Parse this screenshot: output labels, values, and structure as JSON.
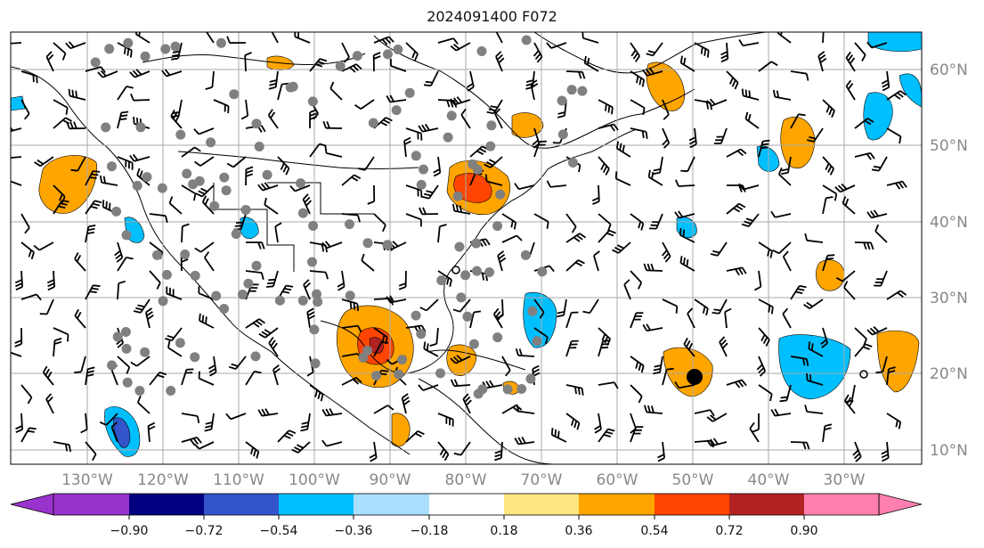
{
  "title": "2024091400 F072",
  "map": {
    "lon_labels": [
      "130°W",
      "120°W",
      "110°W",
      "100°W",
      "90°W",
      "80°W",
      "70°W",
      "60°W",
      "50°W",
      "40°W",
      "30°W"
    ],
    "lat_labels": [
      "60°N",
      "50°N",
      "40°N",
      "30°N",
      "20°N",
      "10°N"
    ],
    "gridline_color": "#aaaaaa",
    "label_color": "#888888",
    "point_marker_color": "#808080",
    "tc_marker_color": "#000000"
  },
  "colorbar": {
    "tick_labels": [
      "−0.90",
      "−0.72",
      "−0.54",
      "−0.36",
      "−0.18",
      "0.18",
      "0.36",
      "0.54",
      "0.72",
      "0.90"
    ],
    "colors": [
      "#9933cc",
      "#000080",
      "#3355cc",
      "#00bfff",
      "#aadfff",
      "#ffffff",
      "#ffe680",
      "#ffa500",
      "#ff4500",
      "#b22222",
      "#ff80b0"
    ]
  }
}
